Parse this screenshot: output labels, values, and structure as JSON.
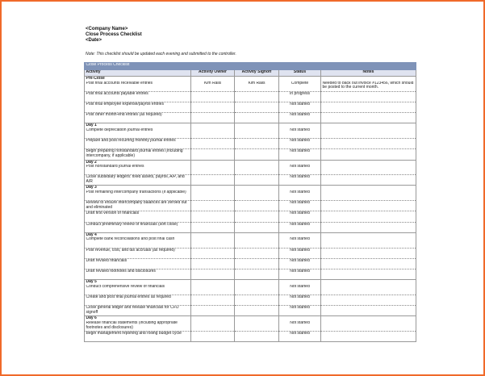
{
  "header": {
    "company": "<Company Name>",
    "title": "Close Process Checklist",
    "date": "<Date>",
    "note": "Note: This checklist should be updated each evening and submitted to the controller."
  },
  "table": {
    "title": "Close Process Checklist",
    "columns": [
      "Activity",
      "Activity Owner",
      "Activity Signoff",
      "Status",
      "Notes"
    ],
    "sections": [
      {
        "label": "Pre-Close",
        "tasks": [
          {
            "activity": "Post final accounts receivable entries",
            "owner": "Kim Ralls",
            "signoff": "Kim Ralls",
            "status": "Complete",
            "notes": "Needed to back out invoice #123456, which should be posted to the current month."
          },
          {
            "activity": "Post final accounts payable entries",
            "status": "In progress"
          },
          {
            "activity": "Post final employee expense/payroll entries",
            "status": "Not started"
          },
          {
            "activity": "Post other month-end entries (as required)",
            "status": "Not started"
          }
        ]
      },
      {
        "label": "Day 1",
        "tasks": [
          {
            "activity": "Complete depreciation journal entries",
            "status": "Not started"
          },
          {
            "activity": "Prepare and post recurring monthly journal entries",
            "status": "Not started"
          },
          {
            "activity": "Begin preparing nonstandard journal entries (including intercompany, if applicable)",
            "status": "Not started"
          }
        ]
      },
      {
        "label": "Day 2",
        "tasks": [
          {
            "activity": "Post nonstandard journal entries",
            "status": "Not started"
          },
          {
            "activity": "Close subsidiary ledgers: fixed assets, payroll, A/P, and A/R",
            "status": "Not started"
          }
        ]
      },
      {
        "label": "Day 3",
        "tasks": [
          {
            "activity": "Post remaining intercompany transactions (if applicable)",
            "status": "Not started"
          },
          {
            "activity": "Review to ensure intercompany balances are zeroed out and eliminated",
            "status": "Not started"
          },
          {
            "activity": "Draft first version of financials",
            "status": "Not started"
          },
          {
            "activity": "Conduct preliminary review of financials (soft close)",
            "status": "Not started"
          }
        ]
      },
      {
        "label": "Day 4",
        "tasks": [
          {
            "activity": "Complete bank reconciliations and post final cash",
            "status": "Not started"
          },
          {
            "activity": "Post revenue, cost, and tax accruals (as required)",
            "status": "Not started"
          },
          {
            "activity": "Draft revised financials",
            "status": "Not started"
          },
          {
            "activity": "Draft revised footnotes and disclosures",
            "status": "Not started"
          }
        ]
      },
      {
        "label": "Day 5",
        "tasks": [
          {
            "activity": "Conduct comprehensive review of financials",
            "status": "Not started"
          },
          {
            "activity": "Create and post final journal entries as required",
            "status": "Not started"
          },
          {
            "activity": "Close general ledger and release financials for CFO signoff",
            "status": "Not started"
          }
        ]
      },
      {
        "label": "Day 6",
        "tasks": [
          {
            "activity": "Release financial statements (including appropriate footnotes and disclosures)",
            "status": "Not started"
          },
          {
            "activity": "Begin management reporting and rolling budget cycle",
            "status": "Not started"
          }
        ]
      }
    ]
  }
}
